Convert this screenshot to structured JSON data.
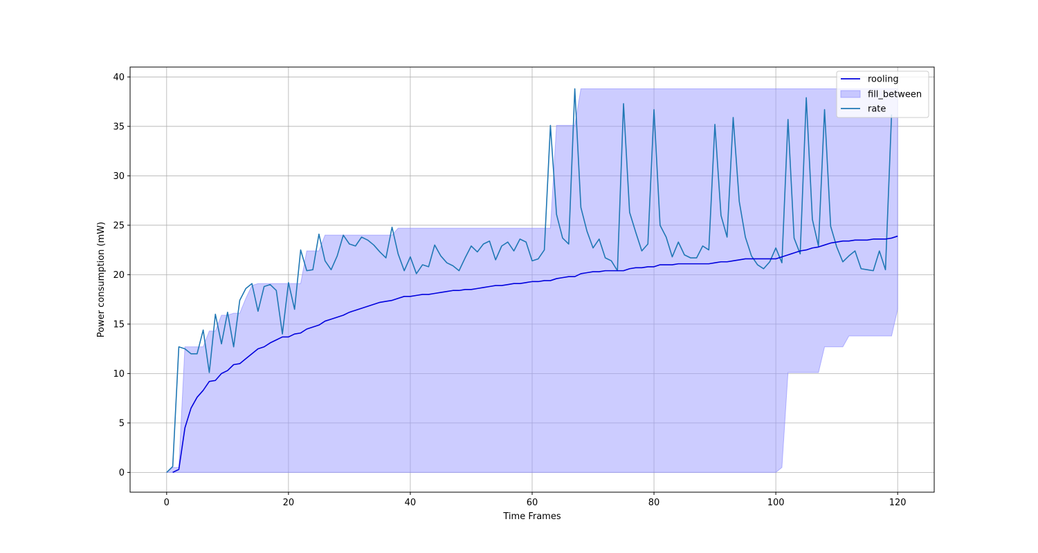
{
  "chart_data": {
    "type": "line",
    "title": "",
    "xlabel": "Time Frames",
    "ylabel": "Power consumption (mW)",
    "xlim": [
      -6,
      126
    ],
    "ylim": [
      -2,
      41
    ],
    "xticks": [
      0,
      20,
      40,
      60,
      80,
      100,
      120
    ],
    "yticks": [
      0,
      5,
      10,
      15,
      20,
      25,
      30,
      35,
      40
    ],
    "grid": true,
    "legend_position": "top-right",
    "colors": {
      "rooling": "#0000dd",
      "fill_between": "#9999ff",
      "rate": "#1f77b4"
    },
    "series": [
      {
        "name": "rooling",
        "type": "line",
        "points": [
          [
            1,
            0.0
          ],
          [
            2,
            0.3
          ],
          [
            3,
            4.5
          ],
          [
            4,
            6.5
          ],
          [
            5,
            7.6
          ],
          [
            6,
            8.3
          ],
          [
            7,
            9.2
          ],
          [
            8,
            9.3
          ],
          [
            9,
            10.0
          ],
          [
            10,
            10.3
          ],
          [
            11,
            10.9
          ],
          [
            12,
            11.0
          ],
          [
            13,
            11.5
          ],
          [
            14,
            12.0
          ],
          [
            15,
            12.5
          ],
          [
            16,
            12.7
          ],
          [
            17,
            13.1
          ],
          [
            18,
            13.4
          ],
          [
            19,
            13.7
          ],
          [
            20,
            13.7
          ],
          [
            21,
            14.0
          ],
          [
            22,
            14.1
          ],
          [
            23,
            14.5
          ],
          [
            24,
            14.7
          ],
          [
            25,
            14.9
          ],
          [
            26,
            15.3
          ],
          [
            27,
            15.5
          ],
          [
            28,
            15.7
          ],
          [
            29,
            15.9
          ],
          [
            30,
            16.2
          ],
          [
            31,
            16.4
          ],
          [
            32,
            16.6
          ],
          [
            33,
            16.8
          ],
          [
            34,
            17.0
          ],
          [
            35,
            17.2
          ],
          [
            36,
            17.3
          ],
          [
            37,
            17.4
          ],
          [
            38,
            17.6
          ],
          [
            39,
            17.8
          ],
          [
            40,
            17.8
          ],
          [
            41,
            17.9
          ],
          [
            42,
            18.0
          ],
          [
            43,
            18.0
          ],
          [
            44,
            18.1
          ],
          [
            45,
            18.2
          ],
          [
            46,
            18.3
          ],
          [
            47,
            18.4
          ],
          [
            48,
            18.4
          ],
          [
            49,
            18.5
          ],
          [
            50,
            18.5
          ],
          [
            51,
            18.6
          ],
          [
            52,
            18.7
          ],
          [
            53,
            18.8
          ],
          [
            54,
            18.9
          ],
          [
            55,
            18.9
          ],
          [
            56,
            19.0
          ],
          [
            57,
            19.1
          ],
          [
            58,
            19.1
          ],
          [
            59,
            19.2
          ],
          [
            60,
            19.3
          ],
          [
            61,
            19.3
          ],
          [
            62,
            19.4
          ],
          [
            63,
            19.4
          ],
          [
            64,
            19.6
          ],
          [
            65,
            19.7
          ],
          [
            66,
            19.8
          ],
          [
            67,
            19.8
          ],
          [
            68,
            20.1
          ],
          [
            69,
            20.2
          ],
          [
            70,
            20.3
          ],
          [
            71,
            20.3
          ],
          [
            72,
            20.4
          ],
          [
            73,
            20.4
          ],
          [
            74,
            20.4
          ],
          [
            75,
            20.4
          ],
          [
            76,
            20.6
          ],
          [
            77,
            20.7
          ],
          [
            78,
            20.7
          ],
          [
            79,
            20.8
          ],
          [
            80,
            20.8
          ],
          [
            81,
            21.0
          ],
          [
            82,
            21.0
          ],
          [
            83,
            21.0
          ],
          [
            84,
            21.1
          ],
          [
            85,
            21.1
          ],
          [
            86,
            21.1
          ],
          [
            87,
            21.1
          ],
          [
            88,
            21.1
          ],
          [
            89,
            21.1
          ],
          [
            90,
            21.2
          ],
          [
            91,
            21.3
          ],
          [
            92,
            21.3
          ],
          [
            93,
            21.4
          ],
          [
            94,
            21.5
          ],
          [
            95,
            21.6
          ],
          [
            96,
            21.6
          ],
          [
            97,
            21.6
          ],
          [
            98,
            21.6
          ],
          [
            99,
            21.6
          ],
          [
            100,
            21.6
          ],
          [
            101,
            21.8
          ],
          [
            102,
            22.0
          ],
          [
            103,
            22.2
          ],
          [
            104,
            22.4
          ],
          [
            105,
            22.5
          ],
          [
            106,
            22.7
          ],
          [
            107,
            22.8
          ],
          [
            108,
            23.0
          ],
          [
            109,
            23.2
          ],
          [
            110,
            23.3
          ],
          [
            111,
            23.4
          ],
          [
            112,
            23.4
          ],
          [
            113,
            23.5
          ],
          [
            114,
            23.5
          ],
          [
            115,
            23.5
          ],
          [
            116,
            23.6
          ],
          [
            117,
            23.6
          ],
          [
            118,
            23.6
          ],
          [
            119,
            23.7
          ],
          [
            120,
            23.9
          ]
        ]
      },
      {
        "name": "fill_between",
        "type": "band",
        "upper": [
          [
            0,
            0
          ],
          [
            1,
            0.5
          ],
          [
            2,
            0.5
          ],
          [
            3,
            12.7
          ],
          [
            4,
            12.7
          ],
          [
            5,
            12.7
          ],
          [
            6,
            12.7
          ],
          [
            7,
            14.3
          ],
          [
            8,
            14.3
          ],
          [
            9,
            15.9
          ],
          [
            10,
            15.9
          ],
          [
            11,
            16.1
          ],
          [
            12,
            16.1
          ],
          [
            13,
            17.6
          ],
          [
            14,
            18.9
          ],
          [
            15,
            19.1
          ],
          [
            16,
            19.1
          ],
          [
            17,
            19.1
          ],
          [
            18,
            19.1
          ],
          [
            19,
            19.1
          ],
          [
            20,
            19.1
          ],
          [
            21,
            19.1
          ],
          [
            22,
            19.1
          ],
          [
            23,
            22.4
          ],
          [
            24,
            22.4
          ],
          [
            25,
            22.4
          ],
          [
            26,
            24.0
          ],
          [
            27,
            24.0
          ],
          [
            28,
            24.0
          ],
          [
            29,
            24.0
          ],
          [
            30,
            24.0
          ],
          [
            31,
            24.0
          ],
          [
            32,
            24.0
          ],
          [
            33,
            24.0
          ],
          [
            34,
            24.0
          ],
          [
            35,
            24.0
          ],
          [
            36,
            24.0
          ],
          [
            37,
            24.0
          ],
          [
            38,
            24.7
          ],
          [
            39,
            24.7
          ],
          [
            40,
            24.7
          ],
          [
            62,
            24.7
          ],
          [
            63,
            24.7
          ],
          [
            64,
            35.1
          ],
          [
            65,
            35.1
          ],
          [
            66,
            35.1
          ],
          [
            67,
            35.1
          ],
          [
            68,
            38.8
          ],
          [
            69,
            38.8
          ],
          [
            119,
            38.8
          ],
          [
            120,
            38.8
          ]
        ],
        "lower": [
          [
            0,
            0
          ],
          [
            1,
            0
          ],
          [
            2,
            0
          ],
          [
            3,
            0
          ],
          [
            100,
            0
          ],
          [
            101,
            0.5
          ],
          [
            102,
            10.1
          ],
          [
            103,
            10.1
          ],
          [
            104,
            10.1
          ],
          [
            105,
            10.1
          ],
          [
            106,
            10.1
          ],
          [
            107,
            10.1
          ],
          [
            108,
            12.7
          ],
          [
            109,
            12.7
          ],
          [
            110,
            12.7
          ],
          [
            111,
            12.7
          ],
          [
            112,
            13.8
          ],
          [
            113,
            13.8
          ],
          [
            114,
            13.8
          ],
          [
            115,
            13.8
          ],
          [
            116,
            13.8
          ],
          [
            117,
            13.8
          ],
          [
            118,
            13.8
          ],
          [
            119,
            13.8
          ],
          [
            120,
            16.5
          ]
        ]
      },
      {
        "name": "rate",
        "type": "line",
        "points": [
          [
            0,
            0.0
          ],
          [
            1,
            0.6
          ],
          [
            2,
            12.7
          ],
          [
            3,
            12.5
          ],
          [
            4,
            12.0
          ],
          [
            5,
            12.0
          ],
          [
            6,
            14.4
          ],
          [
            7,
            10.1
          ],
          [
            8,
            16.0
          ],
          [
            9,
            13.0
          ],
          [
            10,
            16.2
          ],
          [
            11,
            12.7
          ],
          [
            12,
            17.4
          ],
          [
            13,
            18.6
          ],
          [
            14,
            19.1
          ],
          [
            15,
            16.3
          ],
          [
            16,
            18.8
          ],
          [
            17,
            19.0
          ],
          [
            18,
            18.4
          ],
          [
            19,
            14.0
          ],
          [
            20,
            19.2
          ],
          [
            21,
            16.5
          ],
          [
            22,
            22.5
          ],
          [
            23,
            20.4
          ],
          [
            24,
            20.5
          ],
          [
            25,
            24.1
          ],
          [
            26,
            21.4
          ],
          [
            27,
            20.5
          ],
          [
            28,
            21.9
          ],
          [
            29,
            24.0
          ],
          [
            30,
            23.1
          ],
          [
            31,
            22.9
          ],
          [
            32,
            23.8
          ],
          [
            33,
            23.5
          ],
          [
            34,
            23.0
          ],
          [
            35,
            22.3
          ],
          [
            36,
            21.7
          ],
          [
            37,
            24.8
          ],
          [
            38,
            22.1
          ],
          [
            39,
            20.4
          ],
          [
            40,
            21.8
          ],
          [
            41,
            20.1
          ],
          [
            42,
            21.0
          ],
          [
            43,
            20.8
          ],
          [
            44,
            23.0
          ],
          [
            45,
            21.9
          ],
          [
            46,
            21.2
          ],
          [
            47,
            20.9
          ],
          [
            48,
            20.4
          ],
          [
            49,
            21.7
          ],
          [
            50,
            22.9
          ],
          [
            51,
            22.3
          ],
          [
            52,
            23.1
          ],
          [
            53,
            23.4
          ],
          [
            54,
            21.5
          ],
          [
            55,
            22.9
          ],
          [
            56,
            23.3
          ],
          [
            57,
            22.4
          ],
          [
            58,
            23.6
          ],
          [
            59,
            23.3
          ],
          [
            60,
            21.4
          ],
          [
            61,
            21.6
          ],
          [
            62,
            22.5
          ],
          [
            63,
            35.1
          ],
          [
            64,
            26.1
          ],
          [
            65,
            23.7
          ],
          [
            66,
            23.1
          ],
          [
            67,
            38.8
          ],
          [
            68,
            26.8
          ],
          [
            69,
            24.4
          ],
          [
            70,
            22.7
          ],
          [
            71,
            23.6
          ],
          [
            72,
            21.7
          ],
          [
            73,
            21.4
          ],
          [
            74,
            20.4
          ],
          [
            75,
            37.3
          ],
          [
            76,
            26.3
          ],
          [
            77,
            24.3
          ],
          [
            78,
            22.4
          ],
          [
            79,
            23.1
          ],
          [
            80,
            36.7
          ],
          [
            81,
            25.0
          ],
          [
            82,
            23.8
          ],
          [
            83,
            21.8
          ],
          [
            84,
            23.3
          ],
          [
            85,
            22.0
          ],
          [
            86,
            21.7
          ],
          [
            87,
            21.7
          ],
          [
            88,
            22.9
          ],
          [
            89,
            22.5
          ],
          [
            90,
            35.2
          ],
          [
            91,
            26.0
          ],
          [
            92,
            23.8
          ],
          [
            93,
            35.9
          ],
          [
            94,
            27.4
          ],
          [
            95,
            23.8
          ],
          [
            96,
            21.9
          ],
          [
            97,
            21.0
          ],
          [
            98,
            20.6
          ],
          [
            99,
            21.3
          ],
          [
            100,
            22.7
          ],
          [
            101,
            21.2
          ],
          [
            102,
            35.7
          ],
          [
            103,
            23.7
          ],
          [
            104,
            22.1
          ],
          [
            105,
            37.9
          ],
          [
            106,
            25.6
          ],
          [
            107,
            22.9
          ],
          [
            108,
            36.7
          ],
          [
            109,
            24.9
          ],
          [
            110,
            22.8
          ],
          [
            111,
            21.3
          ],
          [
            112,
            21.9
          ],
          [
            113,
            22.4
          ],
          [
            114,
            20.6
          ],
          [
            115,
            20.5
          ],
          [
            116,
            20.4
          ],
          [
            117,
            22.4
          ],
          [
            118,
            20.5
          ],
          [
            119,
            36.2
          ]
        ]
      }
    ]
  }
}
